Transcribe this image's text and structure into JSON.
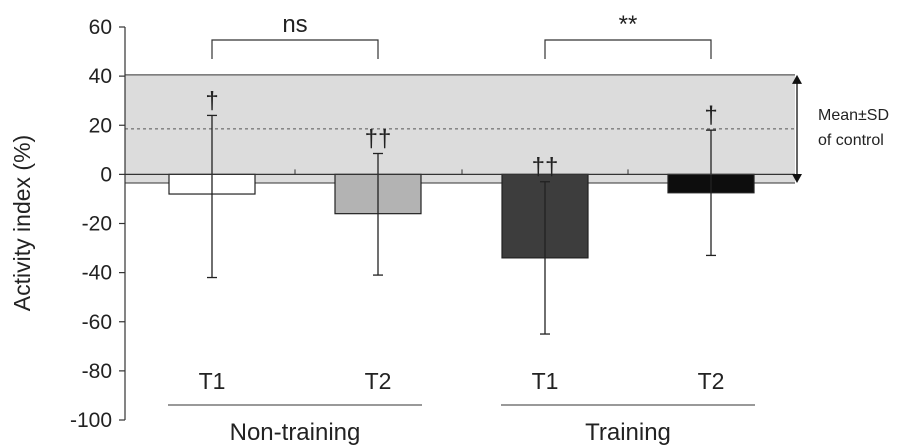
{
  "chart_data": {
    "type": "bar",
    "title": "",
    "xlabel": "",
    "ylabel": "Activity index (%)",
    "ylim": [
      -100,
      60
    ],
    "yticks": [
      60,
      40,
      20,
      0,
      -20,
      -40,
      -60,
      -80,
      -100
    ],
    "grid": false,
    "bars": [
      {
        "group": "Non-training",
        "category": "T1",
        "value": -8,
        "error_upper": 24,
        "error_lower": -42,
        "mark": "†",
        "fill": "#ffffff"
      },
      {
        "group": "Non-training",
        "category": "T2",
        "value": -16,
        "error_upper": 8.5,
        "error_lower": -41,
        "mark": "††",
        "fill": "#b3b3b3"
      },
      {
        "group": "Training",
        "category": "T1",
        "value": -34,
        "error_upper": -3,
        "error_lower": -65,
        "mark": "††",
        "fill": "#3d3d3d"
      },
      {
        "group": "Training",
        "category": "T2",
        "value": -7.5,
        "error_upper": 18,
        "error_lower": -33,
        "mark": "†",
        "fill": "#0d0d0d"
      }
    ],
    "groups": [
      {
        "label": "Non-training",
        "significance": "ns"
      },
      {
        "label": "Training",
        "significance": "**"
      }
    ],
    "control_band": {
      "mean": 18.5,
      "upper": 40.5,
      "lower": -3.5,
      "label_line1": "Mean±SD",
      "label_line2": "of control",
      "color": "#dcdcdc"
    }
  }
}
